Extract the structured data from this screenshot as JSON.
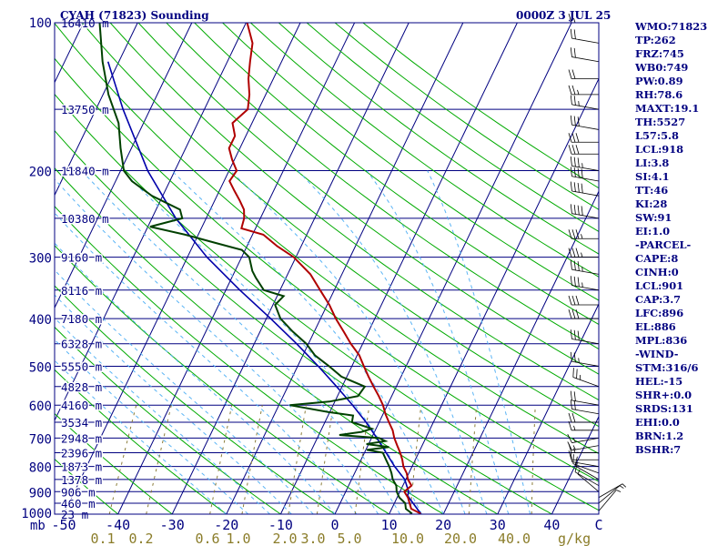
{
  "header": {
    "station": "CYAH (71823) Sounding",
    "time": "0000Z  3 JUL 25"
  },
  "indices": [
    "WMO:71823",
    "TP:262",
    "FRZ:745",
    "WB0:749",
    "PW:0.89",
    "RH:78.6",
    "MAXT:19.1",
    "TH:5527",
    "L57:5.8",
    "LCL:918",
    "LI:3.8",
    "SI:4.1",
    "TT:46",
    "KI:28",
    "SW:91",
    "EI:1.0",
    "-PARCEL-",
    "CAPE:8",
    "CINH:0",
    "LCL:901",
    "CAP:3.7",
    "LFC:896",
    "EL:886",
    "MPL:836",
    "-WIND-",
    "STM:316/6",
    "HEL:-15",
    "SHR+:0.0",
    "SRDS:131",
    "EHI:0.0",
    "BRN:1.2",
    "BSHR:7"
  ],
  "chart_data": {
    "type": "skew-t",
    "pressure_labels": [
      "100",
      "200",
      "300",
      "400",
      "500",
      "600",
      "700",
      "800",
      "900",
      "1000"
    ],
    "pressure_label_values": [
      100,
      200,
      300,
      400,
      500,
      600,
      700,
      800,
      900,
      1000
    ],
    "height_labels": [
      {
        "p": 100,
        "text": "16410 m"
      },
      {
        "p": 150,
        "text": "13750 m"
      },
      {
        "p": 200,
        "text": "11840 m"
      },
      {
        "p": 250,
        "text": "10380 m"
      },
      {
        "p": 300,
        "text": "9160 m"
      },
      {
        "p": 350,
        "text": "8116 m"
      },
      {
        "p": 400,
        "text": "7180 m"
      },
      {
        "p": 450,
        "text": "6328 m"
      },
      {
        "p": 500,
        "text": "5550 m"
      },
      {
        "p": 550,
        "text": "4828 m"
      },
      {
        "p": 600,
        "text": "4160 m"
      },
      {
        "p": 650,
        "text": "3534 m"
      },
      {
        "p": 700,
        "text": "2948 m"
      },
      {
        "p": 750,
        "text": "2396 m"
      },
      {
        "p": 800,
        "text": "1873 m"
      },
      {
        "p": 850,
        "text": "1378 m"
      },
      {
        "p": 900,
        "text": "906 m"
      },
      {
        "p": 950,
        "text": "460 m"
      },
      {
        "p": 1000,
        "text": "23 m"
      }
    ],
    "temp_axis_label": "mb",
    "temp_ticks": [
      "-50",
      "-40",
      "-30",
      "-20",
      "-10",
      "0",
      "10",
      "20",
      "30",
      "40",
      "C"
    ],
    "temp_tick_values": [
      -50,
      -40,
      -30,
      -20,
      -10,
      0,
      10,
      20,
      30,
      40
    ],
    "mixing_ratio_label": "g/kg",
    "mixing_ratio_ticks": [
      "0.1",
      "0.2",
      "0.6",
      "1.0",
      "2.0",
      "3.0",
      "5.0",
      "10.0",
      "20.0",
      "40.0"
    ],
    "temperature_profile": [
      [
        998,
        15.8
      ],
      [
        975,
        13.6
      ],
      [
        950,
        12.8
      ],
      [
        925,
        12
      ],
      [
        900,
        10.8
      ],
      [
        875,
        11.6
      ],
      [
        850,
        10.4
      ],
      [
        825,
        9.6
      ],
      [
        800,
        8.4
      ],
      [
        775,
        7.6
      ],
      [
        750,
        6.6
      ],
      [
        725,
        5.4
      ],
      [
        700,
        4.2
      ],
      [
        675,
        3.2
      ],
      [
        650,
        1.8
      ],
      [
        625,
        0.4
      ],
      [
        600,
        -0.8
      ],
      [
        575,
        -2.4
      ],
      [
        550,
        -4.2
      ],
      [
        525,
        -6
      ],
      [
        500,
        -7.8
      ],
      [
        475,
        -9.6
      ],
      [
        450,
        -12.2
      ],
      [
        425,
        -14.6
      ],
      [
        400,
        -17.2
      ],
      [
        375,
        -19.6
      ],
      [
        350,
        -22.6
      ],
      [
        325,
        -25.8
      ],
      [
        300,
        -30.4
      ],
      [
        285,
        -34.4
      ],
      [
        270,
        -38
      ],
      [
        262,
        -42.6
      ],
      [
        250,
        -43
      ],
      [
        240,
        -43.8
      ],
      [
        230,
        -45.4
      ],
      [
        220,
        -47.2
      ],
      [
        210,
        -49
      ],
      [
        200,
        -48.6
      ],
      [
        190,
        -50.4
      ],
      [
        180,
        -52
      ],
      [
        170,
        -52
      ],
      [
        160,
        -53.6
      ],
      [
        150,
        -52
      ],
      [
        140,
        -53
      ],
      [
        130,
        -54.6
      ],
      [
        120,
        -55.8
      ],
      [
        110,
        -57
      ],
      [
        100,
        -59.8
      ]
    ],
    "dewpoint_profile": [
      [
        998,
        14.2
      ],
      [
        975,
        12.6
      ],
      [
        950,
        12
      ],
      [
        925,
        10.4
      ],
      [
        900,
        9.4
      ],
      [
        875,
        8.8
      ],
      [
        850,
        7.6
      ],
      [
        825,
        6.8
      ],
      [
        800,
        5.8
      ],
      [
        775,
        4.6
      ],
      [
        750,
        3.4
      ],
      [
        740,
        0.2
      ],
      [
        730,
        4
      ],
      [
        720,
        -0.4
      ],
      [
        710,
        2.8
      ],
      [
        700,
        1.4
      ],
      [
        690,
        -6.2
      ],
      [
        680,
        -2.4
      ],
      [
        670,
        -0.8
      ],
      [
        650,
        -5
      ],
      [
        630,
        -5.4
      ],
      [
        620,
        -10.2
      ],
      [
        600,
        -18
      ],
      [
        590,
        -11
      ],
      [
        575,
        -6.2
      ],
      [
        550,
        -5.8
      ],
      [
        525,
        -11
      ],
      [
        500,
        -14.2
      ],
      [
        475,
        -17.8
      ],
      [
        450,
        -20.4
      ],
      [
        425,
        -24
      ],
      [
        400,
        -27.4
      ],
      [
        375,
        -29.6
      ],
      [
        360,
        -28.8
      ],
      [
        350,
        -33
      ],
      [
        330,
        -35.6
      ],
      [
        320,
        -36.8
      ],
      [
        300,
        -38.6
      ],
      [
        290,
        -40.6
      ],
      [
        280,
        -46.4
      ],
      [
        270,
        -52.4
      ],
      [
        260,
        -59.6
      ],
      [
        250,
        -54.4
      ],
      [
        240,
        -55.6
      ],
      [
        225,
        -62
      ],
      [
        210,
        -67
      ],
      [
        200,
        -69.4
      ],
      [
        180,
        -72
      ],
      [
        160,
        -74.6
      ],
      [
        140,
        -79
      ],
      [
        120,
        -83
      ],
      [
        100,
        -87
      ]
    ],
    "parcel_profile": [
      [
        998,
        15.8
      ],
      [
        918,
        11.8
      ],
      [
        900,
        11.6
      ],
      [
        850,
        9.8
      ],
      [
        800,
        6.8
      ],
      [
        750,
        4
      ],
      [
        700,
        1
      ],
      [
        650,
        -2.4
      ],
      [
        600,
        -6.4
      ],
      [
        550,
        -11
      ],
      [
        500,
        -16.2
      ],
      [
        450,
        -22.2
      ],
      [
        400,
        -29.2
      ],
      [
        350,
        -37.4
      ],
      [
        300,
        -46.4
      ],
      [
        250,
        -55.6
      ],
      [
        200,
        -65
      ],
      [
        150,
        -75
      ],
      [
        120,
        -82
      ]
    ],
    "wind_barbs": [
      {
        "p": 985,
        "dir": 40,
        "spd": 5
      },
      {
        "p": 950,
        "dir": 50,
        "spd": 5
      },
      {
        "p": 925,
        "dir": 60,
        "spd": 5
      },
      {
        "p": 900,
        "dir": 310,
        "spd": 5
      },
      {
        "p": 875,
        "dir": 300,
        "spd": 10
      },
      {
        "p": 850,
        "dir": 300,
        "spd": 10
      },
      {
        "p": 825,
        "dir": 290,
        "spd": 10
      },
      {
        "p": 800,
        "dir": 280,
        "spd": 10
      },
      {
        "p": 775,
        "dir": 270,
        "spd": 10
      },
      {
        "p": 750,
        "dir": 270,
        "spd": 15
      },
      {
        "p": 725,
        "dir": 260,
        "spd": 15
      },
      {
        "p": 700,
        "dir": 260,
        "spd": 15
      },
      {
        "p": 675,
        "dir": 270,
        "spd": 15
      },
      {
        "p": 650,
        "dir": 270,
        "spd": 20
      },
      {
        "p": 625,
        "dir": 280,
        "spd": 20
      },
      {
        "p": 600,
        "dir": 280,
        "spd": 20
      },
      {
        "p": 550,
        "dir": 290,
        "spd": 25
      },
      {
        "p": 500,
        "dir": 280,
        "spd": 25
      },
      {
        "p": 450,
        "dir": 280,
        "spd": 30
      },
      {
        "p": 400,
        "dir": 270,
        "spd": 30
      },
      {
        "p": 375,
        "dir": 270,
        "spd": 30
      },
      {
        "p": 350,
        "dir": 280,
        "spd": 35
      },
      {
        "p": 325,
        "dir": 280,
        "spd": 35
      },
      {
        "p": 300,
        "dir": 270,
        "spd": 35
      },
      {
        "p": 275,
        "dir": 270,
        "spd": 35
      },
      {
        "p": 250,
        "dir": 280,
        "spd": 40
      },
      {
        "p": 225,
        "dir": 280,
        "spd": 40
      },
      {
        "p": 210,
        "dir": 280,
        "spd": 40
      },
      {
        "p": 200,
        "dir": 280,
        "spd": 35
      },
      {
        "p": 185,
        "dir": 270,
        "spd": 30
      },
      {
        "p": 175,
        "dir": 270,
        "spd": 30
      },
      {
        "p": 165,
        "dir": 280,
        "spd": 30
      },
      {
        "p": 150,
        "dir": 280,
        "spd": 25
      },
      {
        "p": 140,
        "dir": 270,
        "spd": 25
      },
      {
        "p": 130,
        "dir": 270,
        "spd": 20
      },
      {
        "p": 120,
        "dir": 280,
        "spd": 20
      },
      {
        "p": 110,
        "dir": 280,
        "spd": 20
      },
      {
        "p": 100,
        "dir": 270,
        "spd": 15
      }
    ],
    "colors": {
      "isobar": "#000080",
      "isotherm": "#000080",
      "dry_adiabat": "#00aa00",
      "moist_adiabat": "#5ab4f5",
      "mixing_ratio": "#8b7d3a",
      "temperature": "#b00000",
      "dewpoint": "#004000",
      "parcel": "#0000aa",
      "wind": "#000000",
      "mixing_label": "#8b7d2a"
    }
  }
}
